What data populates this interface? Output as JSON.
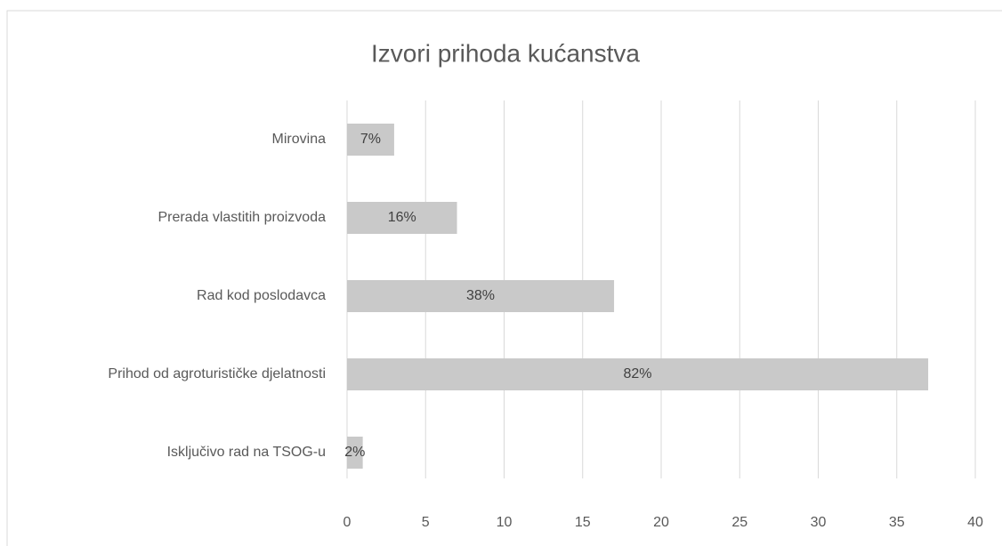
{
  "chart_data": {
    "type": "hbar",
    "title": "Izvori prihoda kućanstva",
    "categories": [
      "Mirovina",
      "Prerada vlastitih proizvoda",
      "Rad kod poslodavca",
      "Prihod od agroturističke djelatnosti",
      "Isključivo rad na TSOG-u"
    ],
    "values": [
      3,
      7,
      17,
      37,
      1
    ],
    "value_labels": [
      "7%",
      "16%",
      "38%",
      "82%",
      "2%"
    ],
    "color": "#c9c9c9",
    "xlim": [
      0,
      40
    ],
    "xticks": [
      0,
      5,
      10,
      15,
      20,
      25,
      30,
      35,
      40
    ],
    "grid": true
  }
}
